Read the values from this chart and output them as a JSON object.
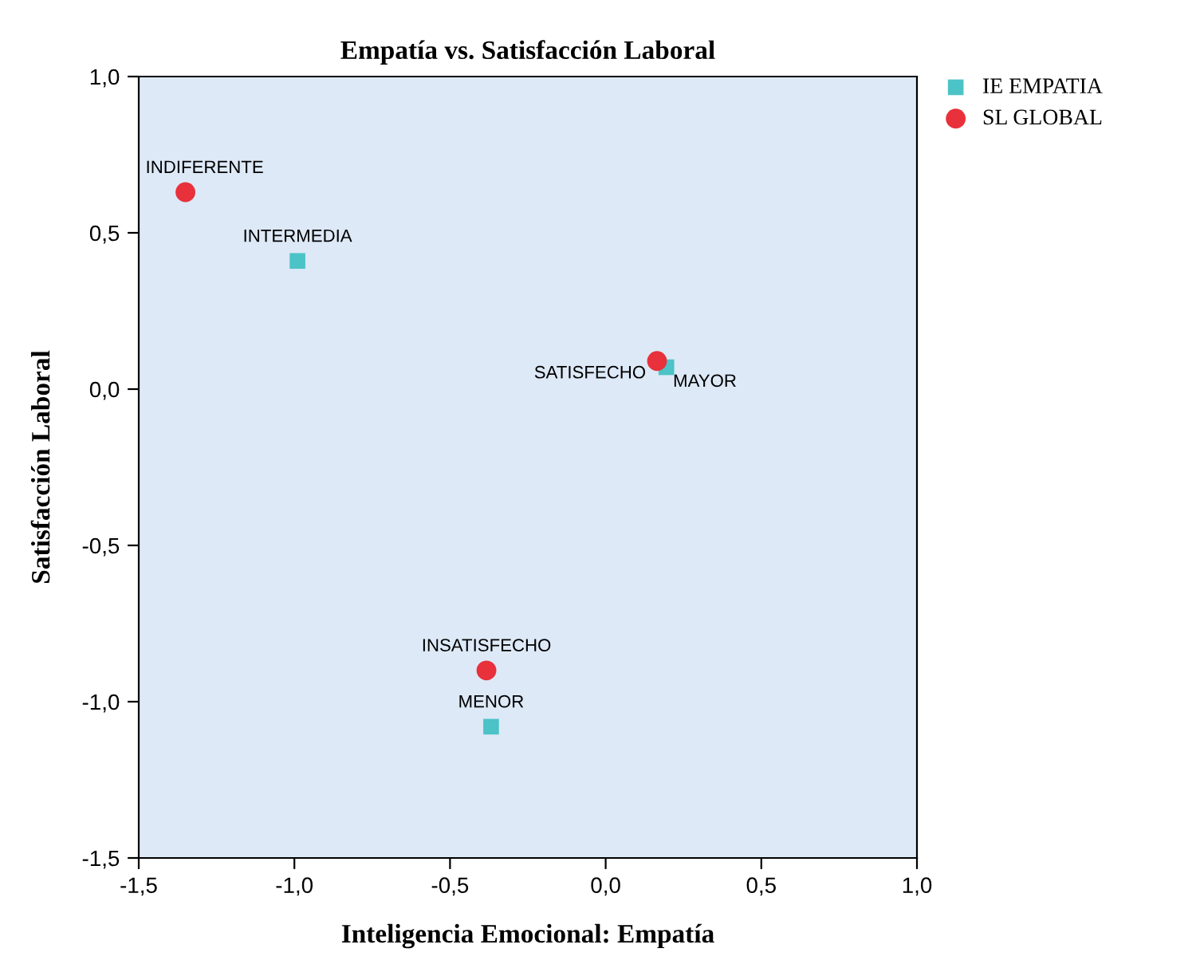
{
  "chart_data": {
    "type": "scatter",
    "title": "Empatía vs. Satisfacción Laboral",
    "xlabel": "Inteligencia Emocional: Empatía",
    "ylabel": "Satisfacción Laboral",
    "series": [
      {
        "name": "IE EMPATIA",
        "color": "#4cc3c6",
        "marker": "square",
        "x": [
          -0.99,
          0.195,
          -0.368
        ],
        "values": [
          0.41,
          0.07,
          -1.08
        ]
      },
      {
        "name": "SL GLOBAL",
        "color": "#e8313b",
        "marker": "circle",
        "x": [
          -1.35,
          0.165,
          -0.383
        ],
        "values": [
          0.63,
          0.09,
          -0.9
        ]
      }
    ],
    "annotations": [
      {
        "text": "INTERMEDIA",
        "x": -0.99,
        "y": 0.41
      },
      {
        "text": "MAYOR",
        "x": 0.195,
        "y": 0.07
      },
      {
        "text": "MENOR",
        "x": -0.368,
        "y": -1.08
      },
      {
        "text": "INDIFERENTE",
        "x": -1.35,
        "y": 0.63
      },
      {
        "text": "SATISFECHO",
        "x": 0.165,
        "y": 0.09
      },
      {
        "text": "INSATISFECHO",
        "x": -0.383,
        "y": -0.9
      }
    ],
    "xlim": [
      -1.5,
      1.0
    ],
    "ylim": [
      -1.5,
      1.0
    ],
    "xticks": [
      {
        "value": -1.5,
        "label": "-1,5"
      },
      {
        "value": -1.0,
        "label": "-1,0"
      },
      {
        "value": -0.5,
        "label": "-0,5"
      },
      {
        "value": 0.0,
        "label": "0,0"
      },
      {
        "value": 0.5,
        "label": "0,5"
      },
      {
        "value": 1.0,
        "label": "1,0"
      }
    ],
    "yticks": [
      {
        "value": -1.5,
        "label": "-1,5"
      },
      {
        "value": -1.0,
        "label": "-1,0"
      },
      {
        "value": -0.5,
        "label": "-0,5"
      },
      {
        "value": 0.0,
        "label": "0,0"
      },
      {
        "value": 0.5,
        "label": "0,5"
      },
      {
        "value": 1.0,
        "label": "1,0"
      }
    ],
    "grid": false,
    "legend": "top right"
  }
}
